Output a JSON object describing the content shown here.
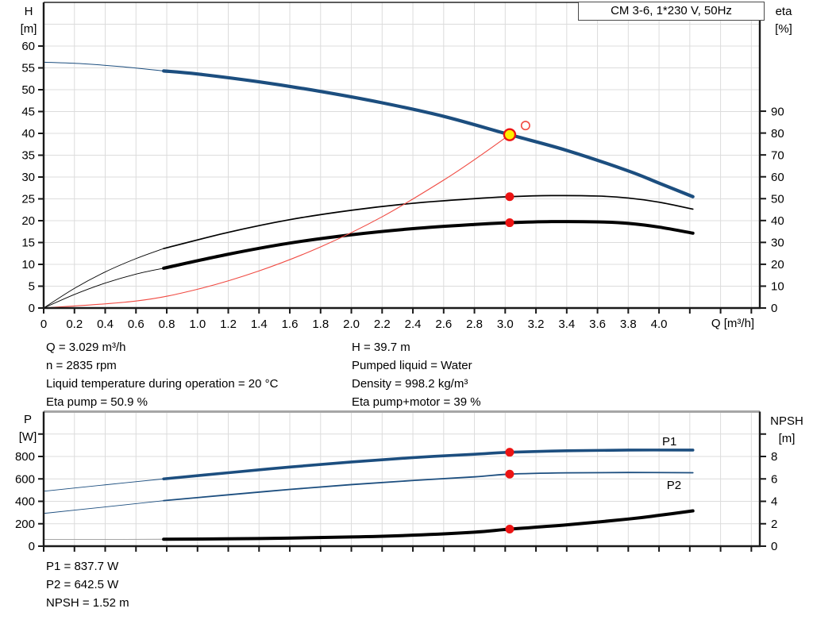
{
  "title_box": {
    "label": "CM 3-6, 1*230 V, 50Hz"
  },
  "info_top": {
    "left": [
      "Q = 3.029 m³/h",
      "n = 2835 rpm",
      "Liquid temperature during operation = 20 °C",
      "Eta pump = 50.9 %"
    ],
    "right": [
      "H = 39.7 m",
      "Pumped liquid = Water",
      "Density = 998.2 kg/m³",
      "Eta pump+motor = 39 %"
    ]
  },
  "info_bottom": [
    "P1 = 837.7 W",
    "P2 = 642.5 W",
    "NPSH = 1.52 m"
  ],
  "colors": {
    "curve_blue": "#1c4e7f",
    "curve_black": "#000000",
    "system_red": "#f04a42",
    "marker_red": "#ec1313",
    "duty_yellow": "#ffee00",
    "grid": "#dcdcdc",
    "frame": "#1a1a1a",
    "npsh_lead_gray": "#9a9a9a"
  },
  "chart_data": [
    {
      "type": "line",
      "title": "CM 3-6, 1*230 V, 50Hz",
      "x_axis": {
        "label": "Q [m³/h]",
        "range": [
          0,
          4.655
        ],
        "ticks": [
          [
            0,
            "0"
          ],
          [
            0.2,
            "0.2"
          ],
          [
            0.4,
            "0.4"
          ],
          [
            0.6,
            "0.6"
          ],
          [
            0.8,
            "0.8"
          ],
          [
            1.0,
            "1.0"
          ],
          [
            1.2,
            "1.2"
          ],
          [
            1.4,
            "1.4"
          ],
          [
            1.6,
            "1.6"
          ],
          [
            1.8,
            "1.8"
          ],
          [
            2.0,
            "2.0"
          ],
          [
            2.2,
            "2.2"
          ],
          [
            2.4,
            "2.4"
          ],
          [
            2.6,
            "2.6"
          ],
          [
            2.8,
            "2.8"
          ],
          [
            3.0,
            "3.0"
          ],
          [
            3.2,
            "3.2"
          ],
          [
            3.4,
            "3.4"
          ],
          [
            3.6,
            "3.6"
          ],
          [
            3.8,
            "3.8"
          ],
          [
            4.0,
            "4.0"
          ],
          [
            4.2,
            ""
          ],
          [
            4.4,
            ""
          ],
          [
            4.6,
            ""
          ]
        ]
      },
      "y_left": {
        "label": "H [m]",
        "label_lines": [
          "H",
          "[m]"
        ],
        "range": [
          0,
          70
        ],
        "ticks": [
          [
            0,
            "0"
          ],
          [
            5,
            "5"
          ],
          [
            10,
            "10"
          ],
          [
            15,
            "15"
          ],
          [
            20,
            "20"
          ],
          [
            25,
            "25"
          ],
          [
            30,
            "30"
          ],
          [
            35,
            "35"
          ],
          [
            40,
            "40"
          ],
          [
            45,
            "45"
          ],
          [
            50,
            "50"
          ],
          [
            55,
            "55"
          ],
          [
            60,
            "60"
          ]
        ],
        "grid": [
          5,
          10,
          15,
          20,
          25,
          30,
          35,
          40,
          45,
          50,
          55,
          60,
          65
        ]
      },
      "y_right": {
        "label": "eta [%]",
        "label_lines": [
          "eta",
          "[%]"
        ],
        "range": [
          0,
          139.75
        ],
        "ticks": [
          [
            0,
            "0"
          ],
          [
            10,
            "10"
          ],
          [
            20,
            "20"
          ],
          [
            30,
            "30"
          ],
          [
            40,
            "40"
          ],
          [
            50,
            "50"
          ],
          [
            60,
            "60"
          ],
          [
            70,
            "70"
          ],
          [
            80,
            "80"
          ],
          [
            90,
            "90"
          ]
        ]
      },
      "series": [
        {
          "name": "qh-curve-lead",
          "axis": "left",
          "color": "#1c4e7f",
          "width": 1,
          "points": [
            [
              0,
              56.3
            ],
            [
              0.25,
              55.95
            ],
            [
              0.5,
              55.3
            ],
            [
              0.78,
              54.3
            ]
          ]
        },
        {
          "name": "qh-curve",
          "axis": "left",
          "color": "#1c4e7f",
          "width": 4.2,
          "points": [
            [
              0.78,
              54.3
            ],
            [
              1.0,
              53.6
            ],
            [
              1.4,
              51.8
            ],
            [
              1.8,
              49.6
            ],
            [
              2.2,
              47.0
            ],
            [
              2.6,
              43.9
            ],
            [
              3.029,
              39.7
            ],
            [
              3.4,
              36.1
            ],
            [
              3.8,
              31.4
            ],
            [
              4.0,
              28.6
            ],
            [
              4.22,
              25.5
            ]
          ]
        },
        {
          "name": "eta-pump-curve-lead",
          "axis": "right",
          "color": "#000000",
          "width": 0.9,
          "points": [
            [
              0,
              0
            ],
            [
              0.2,
              9
            ],
            [
              0.4,
              16.5
            ],
            [
              0.6,
              22.6
            ],
            [
              0.78,
              27.2
            ]
          ]
        },
        {
          "name": "eta-pump-curve",
          "axis": "right",
          "color": "#000000",
          "width": 1.7,
          "points": [
            [
              0.78,
              27.2
            ],
            [
              1.2,
              34.6
            ],
            [
              1.6,
              40.4
            ],
            [
              2.0,
              44.7
            ],
            [
              2.4,
              47.9
            ],
            [
              2.8,
              50.0
            ],
            [
              3.029,
              50.9
            ],
            [
              3.3,
              51.4
            ],
            [
              3.6,
              51.2
            ],
            [
              3.8,
              50.3
            ],
            [
              4.0,
              48.4
            ],
            [
              4.22,
              45.2
            ]
          ]
        },
        {
          "name": "eta-pump-motor-curve-lead",
          "axis": "right",
          "color": "#000000",
          "width": 0.9,
          "points": [
            [
              0,
              0
            ],
            [
              0.2,
              6.2
            ],
            [
              0.4,
              11.4
            ],
            [
              0.6,
              15.5
            ],
            [
              0.78,
              18.2
            ]
          ]
        },
        {
          "name": "eta-pump-motor-curve",
          "axis": "right",
          "color": "#000000",
          "width": 4,
          "points": [
            [
              0.78,
              18.2
            ],
            [
              1.2,
              24.6
            ],
            [
              1.6,
              29.7
            ],
            [
              2.0,
              33.5
            ],
            [
              2.4,
              36.3
            ],
            [
              2.8,
              38.2
            ],
            [
              3.029,
              39.0
            ],
            [
              3.3,
              39.5
            ],
            [
              3.6,
              39.4
            ],
            [
              3.8,
              38.7
            ],
            [
              4.0,
              37.0
            ],
            [
              4.22,
              34.2
            ]
          ]
        },
        {
          "name": "system-curve",
          "axis": "left",
          "color": "#f04a42",
          "width": 1.1,
          "points": [
            [
              0,
              0
            ],
            [
              0.6,
              1.6
            ],
            [
              1.0,
              4.3
            ],
            [
              1.4,
              8.5
            ],
            [
              1.8,
              14.0
            ],
            [
              2.2,
              20.9
            ],
            [
              2.6,
              29.3
            ],
            [
              2.85,
              35.2
            ],
            [
              3.029,
              39.7
            ]
          ]
        }
      ],
      "markers": [
        {
          "name": "duty-point",
          "type": "duty",
          "axis": "left",
          "q": 3.029,
          "v": 39.7
        },
        {
          "name": "requested-duty-point",
          "type": "open",
          "axis": "left",
          "q": 3.132,
          "v": 41.8
        },
        {
          "name": "eta-pump-point",
          "type": "dot",
          "axis": "right",
          "q": 3.029,
          "v": 50.9
        },
        {
          "name": "eta-pump-motor-point",
          "type": "dot",
          "axis": "right",
          "q": 3.029,
          "v": 39.0
        }
      ],
      "labels": []
    },
    {
      "type": "line",
      "title": "Power and NPSH curves",
      "x_axis": {
        "label": "",
        "range": [
          0,
          4.655
        ],
        "ticks": [
          [
            0,
            ""
          ],
          [
            0.2,
            ""
          ],
          [
            0.4,
            ""
          ],
          [
            0.6,
            ""
          ],
          [
            0.8,
            ""
          ],
          [
            1.0,
            ""
          ],
          [
            1.2,
            ""
          ],
          [
            1.4,
            ""
          ],
          [
            1.6,
            ""
          ],
          [
            1.8,
            ""
          ],
          [
            2.0,
            ""
          ],
          [
            2.2,
            ""
          ],
          [
            2.4,
            ""
          ],
          [
            2.6,
            ""
          ],
          [
            2.8,
            ""
          ],
          [
            3.0,
            ""
          ],
          [
            3.2,
            ""
          ],
          [
            3.4,
            ""
          ],
          [
            3.6,
            ""
          ],
          [
            3.8,
            ""
          ],
          [
            4.0,
            ""
          ],
          [
            4.2,
            ""
          ],
          [
            4.4,
            ""
          ],
          [
            4.6,
            ""
          ]
        ]
      },
      "y_left": {
        "label": "P [W]",
        "label_lines": [
          "P",
          "[W]"
        ],
        "range": [
          0,
          1200
        ],
        "ticks": [
          [
            0,
            "0"
          ],
          [
            200,
            "200"
          ],
          [
            400,
            "400"
          ],
          [
            600,
            "600"
          ],
          [
            800,
            "800"
          ],
          [
            1000,
            ""
          ]
        ],
        "grid": [
          200,
          400,
          600,
          800,
          1000
        ]
      },
      "y_right": {
        "label": "NPSH [m]",
        "label_lines": [
          "NPSH",
          "[m]"
        ],
        "range": [
          0,
          12
        ],
        "ticks": [
          [
            0,
            "0"
          ],
          [
            2,
            "2"
          ],
          [
            4,
            "4"
          ],
          [
            6,
            "6"
          ],
          [
            8,
            "8"
          ],
          [
            10,
            ""
          ]
        ]
      },
      "series": [
        {
          "name": "p1-curve-lead",
          "axis": "left",
          "color": "#1c4e7f",
          "width": 0.9,
          "points": [
            [
              0,
              490
            ],
            [
              0.4,
              547
            ],
            [
              0.78,
              600
            ]
          ]
        },
        {
          "name": "p1-curve",
          "axis": "left",
          "color": "#1c4e7f",
          "width": 3.6,
          "points": [
            [
              0.78,
              600
            ],
            [
              1.2,
              655
            ],
            [
              1.6,
              706
            ],
            [
              2.0,
              751
            ],
            [
              2.4,
              790
            ],
            [
              2.8,
              820
            ],
            [
              3.029,
              837.7
            ],
            [
              3.4,
              851
            ],
            [
              3.8,
              857
            ],
            [
              4.22,
              857
            ]
          ]
        },
        {
          "name": "p2-curve-lead",
          "axis": "left",
          "color": "#1c4e7f",
          "width": 0.9,
          "points": [
            [
              0,
              292
            ],
            [
              0.4,
              350
            ],
            [
              0.78,
              406
            ]
          ]
        },
        {
          "name": "p2-curve",
          "axis": "left",
          "color": "#1c4e7f",
          "width": 1.8,
          "points": [
            [
              0.78,
              406
            ],
            [
              1.2,
              458
            ],
            [
              1.6,
              506
            ],
            [
              2.0,
              549
            ],
            [
              2.4,
              586
            ],
            [
              2.8,
              618
            ],
            [
              3.029,
              642.5
            ],
            [
              3.4,
              654
            ],
            [
              3.8,
              657
            ],
            [
              4.22,
              655
            ]
          ]
        },
        {
          "name": "npsh-curve-lead",
          "axis": "right",
          "color": "#9a9a9a",
          "width": 0.9,
          "points": [
            [
              0,
              0.6
            ],
            [
              0.4,
              0.6
            ],
            [
              0.78,
              0.62
            ]
          ]
        },
        {
          "name": "npsh-curve",
          "axis": "right",
          "color": "#000000",
          "width": 4,
          "points": [
            [
              0.78,
              0.62
            ],
            [
              1.4,
              0.68
            ],
            [
              2.0,
              0.82
            ],
            [
              2.4,
              0.98
            ],
            [
              2.8,
              1.25
            ],
            [
              3.029,
              1.52
            ],
            [
              3.4,
              1.9
            ],
            [
              3.8,
              2.42
            ],
            [
              4.0,
              2.75
            ],
            [
              4.22,
              3.15
            ]
          ]
        }
      ],
      "markers": [
        {
          "name": "p1-point",
          "type": "dot",
          "axis": "left",
          "q": 3.029,
          "v": 837.7
        },
        {
          "name": "p2-point",
          "type": "dot",
          "axis": "left",
          "q": 3.029,
          "v": 642.5
        },
        {
          "name": "npsh-point",
          "type": "dot",
          "axis": "right",
          "q": 3.029,
          "v": 1.52
        }
      ],
      "labels": [
        {
          "name": "p1-curve-label",
          "text": "P1",
          "q": 4.02,
          "v": 935,
          "axis": "left",
          "color": "#1c4e7f"
        },
        {
          "name": "p2-curve-label",
          "text": "P2",
          "q": 4.05,
          "v": 545,
          "axis": "left",
          "color": "#1c4e7f"
        }
      ]
    }
  ]
}
